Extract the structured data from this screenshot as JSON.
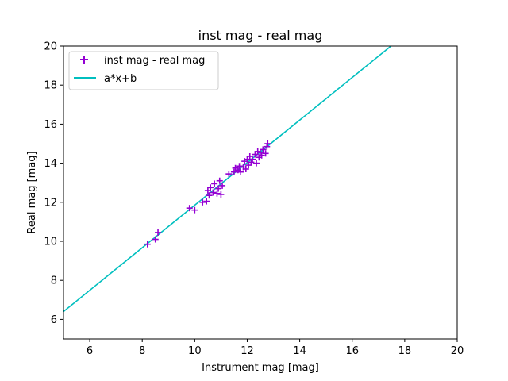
{
  "chart_data": {
    "type": "scatter",
    "title": "inst mag - real mag",
    "xlabel": "Instrument mag [mag]",
    "ylabel": "Real mag [mag]",
    "xlim": [
      5,
      20
    ],
    "ylim": [
      5,
      20
    ],
    "xticks": [
      6,
      8,
      10,
      12,
      14,
      16,
      18,
      20
    ],
    "yticks": [
      6,
      8,
      10,
      12,
      14,
      16,
      18,
      20
    ],
    "grid": false,
    "legend_position": "top-left",
    "series": [
      {
        "name": "inst mag - real mag",
        "kind": "scatter",
        "marker": "plus",
        "color": "#9400d3",
        "points": [
          [
            8.2,
            9.85
          ],
          [
            8.5,
            10.1
          ],
          [
            8.6,
            10.45
          ],
          [
            9.8,
            11.7
          ],
          [
            10.0,
            11.6
          ],
          [
            10.3,
            12.0
          ],
          [
            10.45,
            12.05
          ],
          [
            10.5,
            12.6
          ],
          [
            10.55,
            12.35
          ],
          [
            10.6,
            12.75
          ],
          [
            10.7,
            12.5
          ],
          [
            10.75,
            12.95
          ],
          [
            10.85,
            12.45
          ],
          [
            10.9,
            12.7
          ],
          [
            10.95,
            13.1
          ],
          [
            11.0,
            12.4
          ],
          [
            11.05,
            12.85
          ],
          [
            11.3,
            13.45
          ],
          [
            11.5,
            13.55
          ],
          [
            11.55,
            13.75
          ],
          [
            11.65,
            13.65
          ],
          [
            11.7,
            13.85
          ],
          [
            11.75,
            13.55
          ],
          [
            11.85,
            13.8
          ],
          [
            11.9,
            14.1
          ],
          [
            11.95,
            13.7
          ],
          [
            12.0,
            14.2
          ],
          [
            12.05,
            13.9
          ],
          [
            12.1,
            14.35
          ],
          [
            12.15,
            14.05
          ],
          [
            12.2,
            14.2
          ],
          [
            12.3,
            14.45
          ],
          [
            12.35,
            14.0
          ],
          [
            12.4,
            14.6
          ],
          [
            12.45,
            14.3
          ],
          [
            12.5,
            14.55
          ],
          [
            12.55,
            14.4
          ],
          [
            12.6,
            14.7
          ],
          [
            12.7,
            14.5
          ],
          [
            12.75,
            14.85
          ],
          [
            12.78,
            15.0
          ]
        ]
      },
      {
        "name": "a*x+b",
        "kind": "line",
        "color": "#00bfbf",
        "slope": 1.09,
        "intercept": 0.95
      }
    ]
  }
}
